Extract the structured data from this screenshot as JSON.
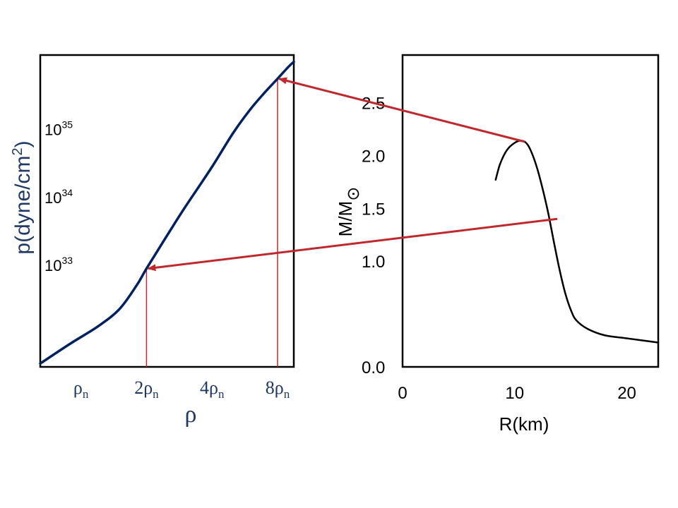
{
  "chart_data": [
    {
      "type": "line",
      "title": "",
      "xlabel": "ρ",
      "ylabel": {
        "main": "p(dyne/cm",
        "sup": "2",
        "tail": ")"
      },
      "x_scale": "log",
      "y_scale": "log",
      "x_ticks": [
        {
          "value": 1,
          "coef": "",
          "sym": "ρ",
          "sub": "n"
        },
        {
          "value": 2,
          "coef": "2",
          "sym": "ρ",
          "sub": "n"
        },
        {
          "value": 4,
          "coef": "4",
          "sym": "ρ",
          "sub": "n"
        },
        {
          "value": 8,
          "coef": "8",
          "sym": "ρ",
          "sub": "n"
        }
      ],
      "y_ticks": [
        {
          "value": 33,
          "base": "10",
          "exp": "33"
        },
        {
          "value": 34,
          "base": "10",
          "exp": "34"
        },
        {
          "value": 35,
          "base": "10",
          "exp": "35"
        }
      ],
      "xlim": [
        0.65,
        9.5
      ],
      "ylim": [
        31.5,
        36.1
      ],
      "curve_color": "#002060",
      "series": [
        {
          "x": [
            0.65,
            0.9,
            1.2,
            1.5,
            1.8,
            2.0,
            2.5,
            3.0,
            4.0,
            5.0,
            6.0,
            7.0,
            8.0,
            9.0,
            9.5
          ],
          "y": [
            31.55,
            31.85,
            32.1,
            32.35,
            32.7,
            32.95,
            33.45,
            33.85,
            34.45,
            34.95,
            35.3,
            35.55,
            35.75,
            35.93,
            36.0
          ]
        }
      ]
    },
    {
      "type": "line",
      "title": "",
      "xlabel": "R(km)",
      "ylabel": {
        "main": "M/M",
        "sub": "⊙"
      },
      "x_ticks": [
        0,
        10,
        20
      ],
      "y_ticks": [
        {
          "value": 0.0,
          "label": "0.0"
        },
        {
          "value": 1.0,
          "label": "1.0"
        },
        {
          "value": 1.5,
          "label": "1.5"
        },
        {
          "value": 2.0,
          "label": "2.0"
        },
        {
          "value": 2.5,
          "label": "2.5"
        }
      ],
      "xlim": [
        0,
        22.8
      ],
      "ylim": [
        0,
        2.95
      ],
      "curve_color": "#000000",
      "series": [
        {
          "x": [
            8.3,
            8.7,
            9.3,
            10.0,
            10.6,
            11.1,
            11.5,
            12.0,
            12.5,
            13.0,
            13.5,
            14.0,
            14.5,
            15.0,
            15.5,
            16.5,
            18.0,
            20.0,
            22.8
          ],
          "y": [
            1.77,
            1.92,
            2.05,
            2.12,
            2.14,
            2.11,
            2.03,
            1.88,
            1.68,
            1.45,
            1.18,
            0.92,
            0.7,
            0.54,
            0.44,
            0.36,
            0.3,
            0.27,
            0.23
          ]
        }
      ]
    }
  ],
  "annotations": {
    "arrow_color": "#c0282d",
    "links": [
      {
        "from_R": 10.9,
        "from_M": 2.13,
        "to_rho": 8.0,
        "to_logp": 35.75
      },
      {
        "from_R": 13.8,
        "from_M": 1.4,
        "to_rho": 2.0,
        "to_logp": 32.95
      }
    ]
  }
}
